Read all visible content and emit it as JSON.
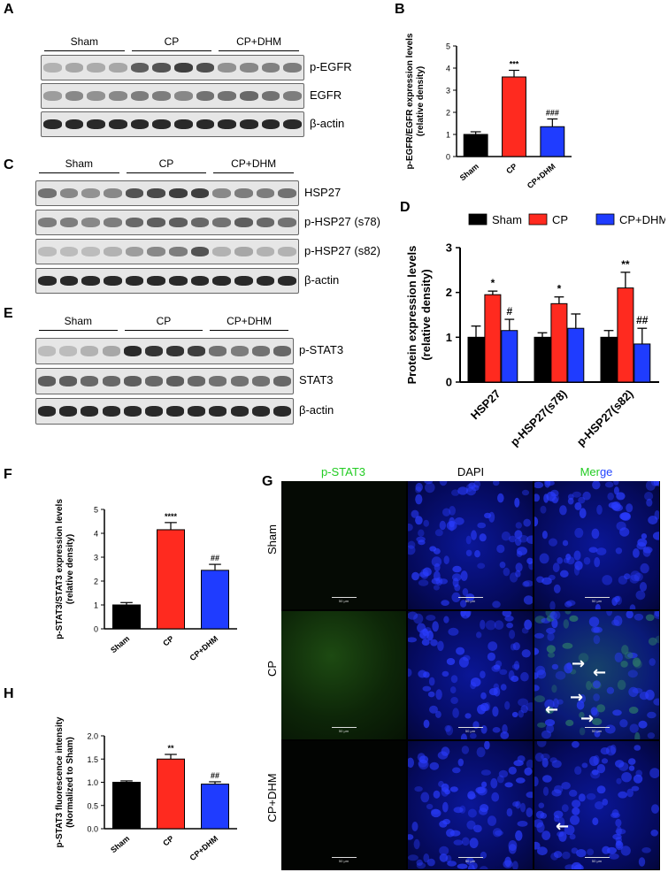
{
  "panels": {
    "A": "A",
    "B": "B",
    "C": "C",
    "D": "D",
    "E": "E",
    "F": "F",
    "G": "G",
    "H": "H"
  },
  "groups": [
    "Sham",
    "CP",
    "CP+DHM"
  ],
  "blot_A": {
    "rows": [
      "p-EGFR",
      "EGFR",
      "β-actin"
    ],
    "intensity": [
      [
        0.25,
        0.3,
        0.28,
        0.3,
        0.65,
        0.7,
        0.8,
        0.72,
        0.4,
        0.45,
        0.48,
        0.5
      ],
      [
        0.35,
        0.45,
        0.4,
        0.45,
        0.5,
        0.5,
        0.45,
        0.55,
        0.55,
        0.6,
        0.55,
        0.5
      ],
      [
        0.9,
        0.9,
        0.9,
        0.9,
        0.9,
        0.9,
        0.9,
        0.9,
        0.9,
        0.9,
        0.9,
        0.9
      ]
    ]
  },
  "blot_C": {
    "rows": [
      "HSP27",
      "p-HSP27 (s78)",
      "p-HSP27 (s82)",
      "β-actin"
    ],
    "intensity": [
      [
        0.55,
        0.45,
        0.4,
        0.45,
        0.7,
        0.75,
        0.8,
        0.8,
        0.45,
        0.5,
        0.5,
        0.55
      ],
      [
        0.5,
        0.5,
        0.45,
        0.5,
        0.6,
        0.65,
        0.65,
        0.6,
        0.55,
        0.65,
        0.6,
        0.55
      ],
      [
        0.2,
        0.2,
        0.2,
        0.25,
        0.35,
        0.45,
        0.5,
        0.7,
        0.25,
        0.3,
        0.25,
        0.25
      ],
      [
        0.9,
        0.9,
        0.9,
        0.9,
        0.9,
        0.9,
        0.9,
        0.9,
        0.9,
        0.9,
        0.9,
        0.9
      ]
    ]
  },
  "blot_E": {
    "rows": [
      "p-STAT3",
      "STAT3",
      "β-actin"
    ],
    "intensity": [
      [
        0.2,
        0.2,
        0.25,
        0.3,
        0.9,
        0.85,
        0.85,
        0.8,
        0.55,
        0.5,
        0.55,
        0.6
      ],
      [
        0.65,
        0.65,
        0.6,
        0.6,
        0.65,
        0.6,
        0.65,
        0.6,
        0.55,
        0.55,
        0.55,
        0.6
      ],
      [
        0.9,
        0.9,
        0.9,
        0.9,
        0.9,
        0.9,
        0.9,
        0.9,
        0.9,
        0.9,
        0.9,
        0.9
      ]
    ]
  },
  "chart_data": [
    {
      "type": "bar",
      "panel": "B",
      "categories": [
        "Sham",
        "CP",
        "CP+DHM"
      ],
      "values": [
        1.0,
        3.6,
        1.35
      ],
      "errors": [
        0.12,
        0.3,
        0.35
      ],
      "annotations": [
        "",
        "***",
        "###"
      ],
      "colors": [
        "#000000",
        "#ff2a1f",
        "#1f3cff"
      ],
      "ylabel_line1": "p-EGFR/EGFR expression levels",
      "ylabel_line2": "(relative density)",
      "ylim": [
        0,
        5
      ],
      "yticks": [
        0,
        1,
        2,
        3,
        4,
        5
      ]
    },
    {
      "type": "bar",
      "panel": "D",
      "categories": [
        "HSP27",
        "p-HSP27(s78)",
        "p-HSP27(s82)"
      ],
      "series": [
        {
          "name": "Sham",
          "color": "#000000",
          "values": [
            1.0,
            1.0,
            1.0
          ],
          "errors": [
            0.25,
            0.1,
            0.15
          ],
          "annotations": [
            "",
            "",
            ""
          ]
        },
        {
          "name": "CP",
          "color": "#ff2a1f",
          "values": [
            1.95,
            1.75,
            2.1
          ],
          "errors": [
            0.08,
            0.15,
            0.35
          ],
          "annotations": [
            "*",
            "*",
            "**"
          ]
        },
        {
          "name": "CP+DHM",
          "color": "#1f3cff",
          "values": [
            1.15,
            1.2,
            0.85
          ],
          "errors": [
            0.25,
            0.32,
            0.35
          ],
          "annotations": [
            "#",
            "",
            "##"
          ]
        }
      ],
      "ylabel_line1": "Protein expression levels",
      "ylabel_line2": "(relative density)",
      "ylim": [
        0,
        3
      ],
      "yticks": [
        0,
        1,
        2,
        3
      ]
    },
    {
      "type": "bar",
      "panel": "F",
      "categories": [
        "Sham",
        "CP",
        "CP+DHM"
      ],
      "values": [
        1.0,
        4.15,
        2.45
      ],
      "errors": [
        0.1,
        0.3,
        0.25
      ],
      "annotations": [
        "",
        "****",
        "##"
      ],
      "colors": [
        "#000000",
        "#ff2a1f",
        "#1f3cff"
      ],
      "ylabel_line1": "p-STAT3/STAT3 expression levels",
      "ylabel_line2": "(relative density)",
      "ylim": [
        0,
        5
      ],
      "yticks": [
        0,
        1,
        2,
        3,
        4,
        5
      ]
    },
    {
      "type": "bar",
      "panel": "H",
      "categories": [
        "Sham",
        "CP",
        "CP+DHM"
      ],
      "values": [
        1.0,
        1.5,
        0.96
      ],
      "errors": [
        0.03,
        0.1,
        0.05
      ],
      "annotations": [
        "",
        "**",
        "##"
      ],
      "colors": [
        "#000000",
        "#ff2a1f",
        "#1f3cff"
      ],
      "ylabel_line1": "p-STAT3 fluorescence intensity",
      "ylabel_line2": "(Normalized to Sham)",
      "ylim": [
        0,
        2.0
      ],
      "yticks": [
        "0.0",
        "0.5",
        "1.0",
        "1.5",
        "2.0"
      ]
    }
  ],
  "micrograph": {
    "channels": [
      "p-STAT3",
      "DAPI",
      "Merge"
    ],
    "merge_parts": [
      "Mer",
      "ge"
    ],
    "rows": [
      "Sham",
      "CP",
      "CP+DHM"
    ],
    "channel_colors": [
      "#22cc22",
      "#000000",
      "#22cc22"
    ],
    "merge_second_color": "#2244ff",
    "scale_text": "50 μm"
  }
}
